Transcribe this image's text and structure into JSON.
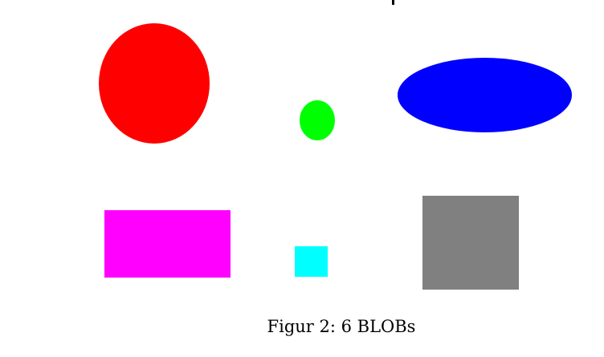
{
  "figure": {
    "caption": "Figur 2: 6 BLOBs",
    "blobs": [
      {
        "shape": "circle",
        "color": "#ff0000"
      },
      {
        "shape": "circle",
        "color": "#00ff00"
      },
      {
        "shape": "ellipse",
        "color": "#0000ff"
      },
      {
        "shape": "rectangle",
        "color": "#ff00ff"
      },
      {
        "shape": "square",
        "color": "#00ffff"
      },
      {
        "shape": "square",
        "color": "#808080"
      }
    ]
  }
}
